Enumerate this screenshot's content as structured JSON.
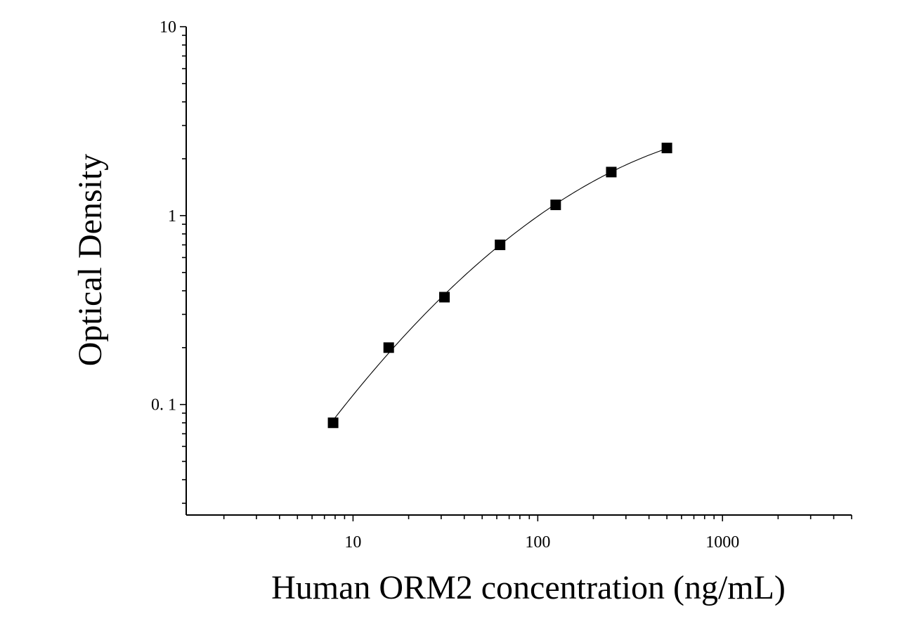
{
  "chart_data": {
    "type": "scatter",
    "title": "",
    "xlabel": "Human ORM2 concentration (ng/mL)",
    "ylabel": "Optical Density",
    "x_scale": "log",
    "y_scale": "log",
    "xlim": [
      1.25,
      5000
    ],
    "ylim": [
      0.026,
      10
    ],
    "x_tick_labels": [
      {
        "value": 10,
        "label": "10"
      },
      {
        "value": 100,
        "label": "100"
      },
      {
        "value": 1000,
        "label": "1000"
      }
    ],
    "y_tick_labels": [
      {
        "value": 10,
        "label": "10"
      },
      {
        "value": 1,
        "label": "1"
      },
      {
        "value": 0.1,
        "label": "0. 1"
      }
    ],
    "grid": false,
    "legend": "none",
    "series": [
      {
        "x": [
          7.8,
          15.6,
          31.25,
          62.5,
          125,
          250,
          500
        ],
        "y": [
          0.08,
          0.2,
          0.37,
          0.7,
          1.14,
          1.7,
          2.28
        ],
        "marker": "square",
        "fit_line": true
      }
    ],
    "colors": {
      "marker": "#000000",
      "curve": "#000000",
      "axis": "#000000"
    }
  }
}
